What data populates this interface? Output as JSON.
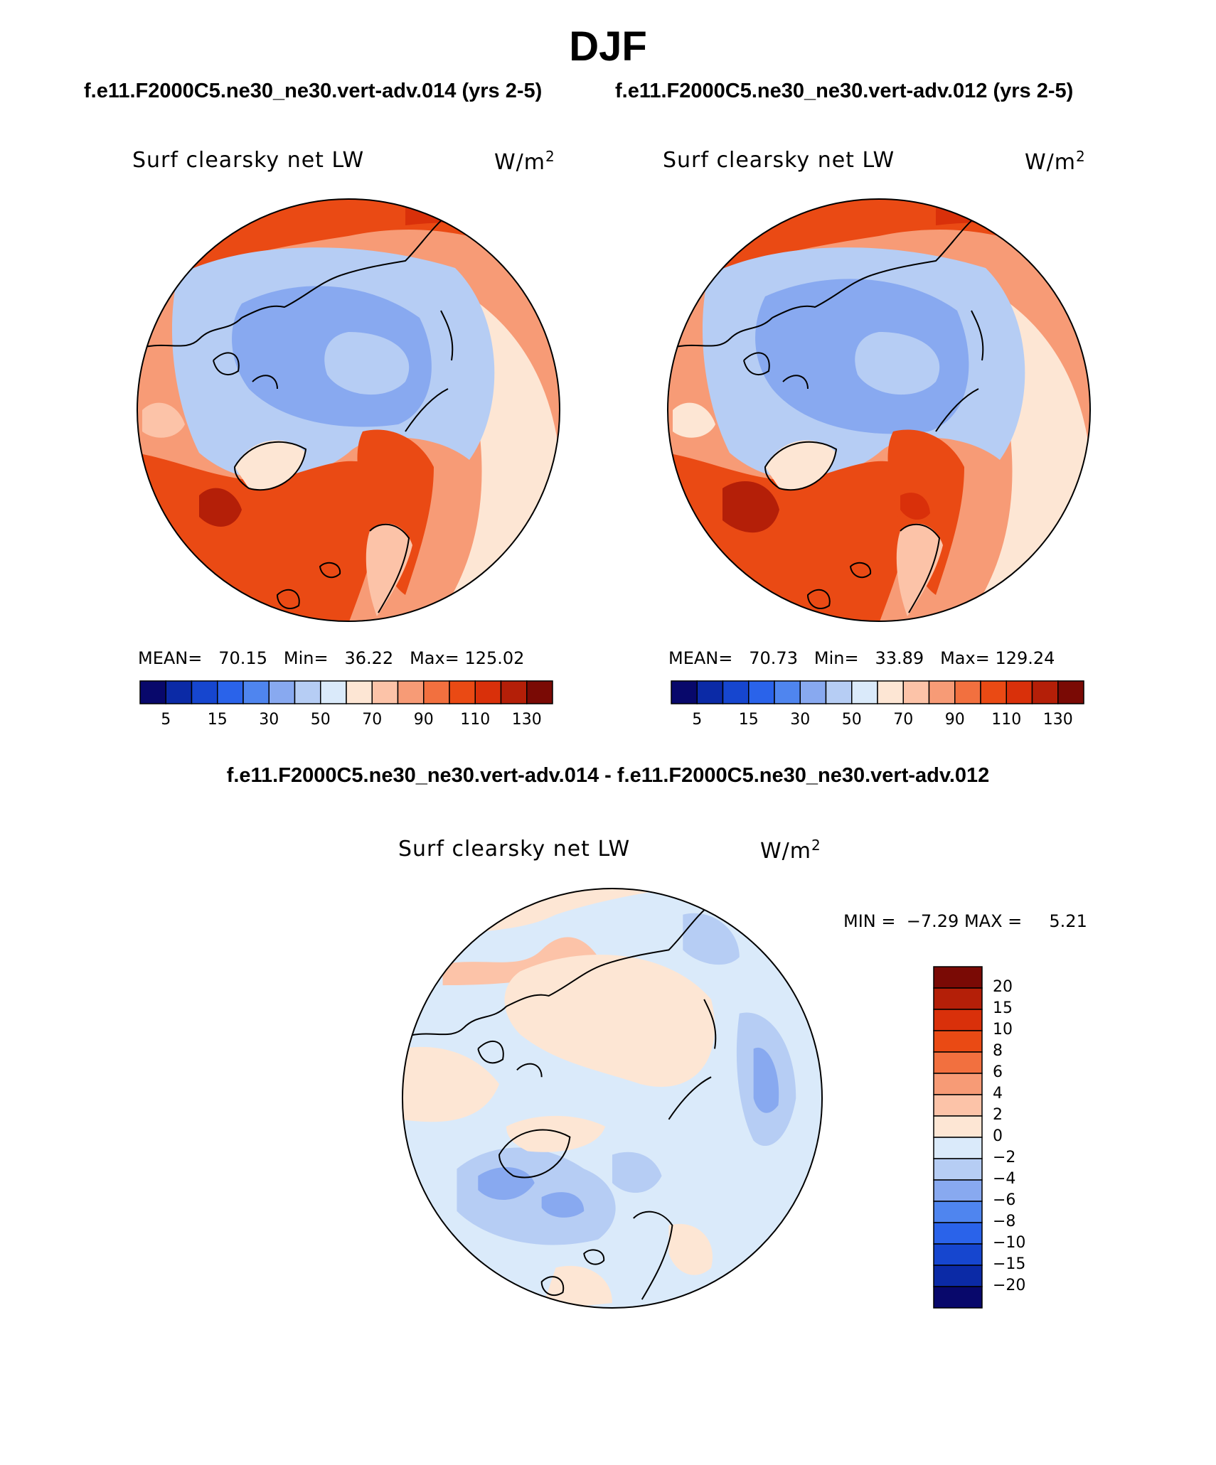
{
  "season": "DJF",
  "panels": [
    {
      "case_title": "f.e11.F2000C5.ne30_ne30.vert-adv.014 (yrs 2-5)",
      "variable": "Surf clearsky net LW",
      "units_base": "W/m",
      "units_exp": "2",
      "stats": {
        "mean_label": "MEAN=",
        "mean": "70.15",
        "min_label": "Min=",
        "min": "36.22",
        "max_label": "Max=",
        "max": "125.02"
      }
    },
    {
      "case_title": "f.e11.F2000C5.ne30_ne30.vert-adv.012 (yrs 2-5)",
      "variable": "Surf clearsky net LW",
      "units_base": "W/m",
      "units_exp": "2",
      "stats": {
        "mean_label": "MEAN=",
        "mean": "70.73",
        "min_label": "Min=",
        "min": "33.89",
        "max_label": "Max=",
        "max": "129.24"
      }
    }
  ],
  "abs_colorbar": {
    "colors": [
      "#08086b",
      "#0b2aa6",
      "#1646cf",
      "#2a63ea",
      "#4f85ef",
      "#88a9f0",
      "#b6cdf4",
      "#daeafa",
      "#fde6d4",
      "#fcc3a8",
      "#f79b76",
      "#f2703f",
      "#ea4a14",
      "#d9300a",
      "#b41f08",
      "#7a0a05"
    ],
    "labels": [
      "5",
      "15",
      "30",
      "50",
      "70",
      "90",
      "110",
      "130"
    ]
  },
  "diff_panel": {
    "title": "f.e11.F2000C5.ne30_ne30.vert-adv.014 - f.e11.F2000C5.ne30_ne30.vert-adv.012",
    "variable": "Surf clearsky net LW",
    "units_base": "W/m",
    "units_exp": "2",
    "min_label": "MIN =",
    "min": "−7.29",
    "max_label": "MAX =",
    "max": "5.21"
  },
  "diff_colorbar": {
    "colors_top_to_bottom": [
      "#7a0a05",
      "#b41f08",
      "#d9300a",
      "#ea4a14",
      "#f2703f",
      "#f79b76",
      "#fcc3a8",
      "#fde6d4",
      "#daeafa",
      "#b6cdf4",
      "#88a9f0",
      "#4f85ef",
      "#2a63ea",
      "#1646cf",
      "#0b2aa6",
      "#08086b"
    ],
    "labels": [
      "20",
      "15",
      "10",
      "8",
      "6",
      "4",
      "2",
      "0",
      "−2",
      "−4",
      "−6",
      "−8",
      "−10",
      "−15",
      "−20"
    ]
  }
}
